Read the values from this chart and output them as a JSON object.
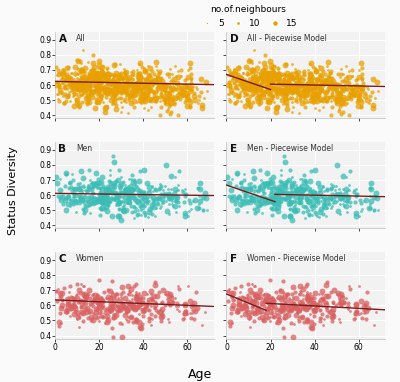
{
  "title": "no.of.neighbours",
  "legend_sizes": [
    5,
    10,
    15
  ],
  "legend_color": "#E8A000",
  "panels": [
    {
      "label": "A",
      "subtitle": "All",
      "color": "#E8A000",
      "row": 0,
      "col": 0,
      "line_slope": -0.0003,
      "line_intercept": 0.624,
      "piecewise": false
    },
    {
      "label": "D",
      "subtitle": "All - Piecewise Model",
      "color": "#E8A000",
      "row": 0,
      "col": 1,
      "piecewise": true,
      "break": 20,
      "slope1": -0.005,
      "int1": 0.67,
      "slope2": -0.0003,
      "int2": 0.612
    },
    {
      "label": "B",
      "subtitle": "Men",
      "color": "#3ABDB5",
      "row": 1,
      "col": 0,
      "line_slope": -0.0002,
      "line_intercept": 0.612,
      "piecewise": false
    },
    {
      "label": "E",
      "subtitle": "Men - Piecewise Model",
      "color": "#3ABDB5",
      "row": 1,
      "col": 1,
      "piecewise": true,
      "break": 22,
      "slope1": -0.005,
      "int1": 0.667,
      "slope2": -0.0003,
      "int2": 0.612
    },
    {
      "label": "C",
      "subtitle": "Women",
      "color": "#D96060",
      "row": 2,
      "col": 0,
      "line_slope": -0.0006,
      "line_intercept": 0.636,
      "piecewise": false
    },
    {
      "label": "F",
      "subtitle": "Women - Piecewise Model",
      "color": "#D96060",
      "row": 2,
      "col": 1,
      "piecewise": true,
      "break": 18,
      "slope1": -0.006,
      "int1": 0.675,
      "slope2": -0.0008,
      "int2": 0.628
    }
  ],
  "xlim": [
    0,
    72
  ],
  "ylim": [
    0.38,
    0.95
  ],
  "yticks": [
    0.4,
    0.5,
    0.6,
    0.7,
    0.8,
    0.9
  ],
  "xticks": [
    0,
    20,
    40,
    60
  ],
  "line_color": "#7B1A1A",
  "bg_color": "#F2F2F2",
  "grid_color": "#FFFFFF",
  "point_alpha": 0.75,
  "xlabel": "Age",
  "ylabel": "Status Diversity",
  "n_points_all": 900,
  "n_points_men": 450,
  "n_points_women": 420
}
